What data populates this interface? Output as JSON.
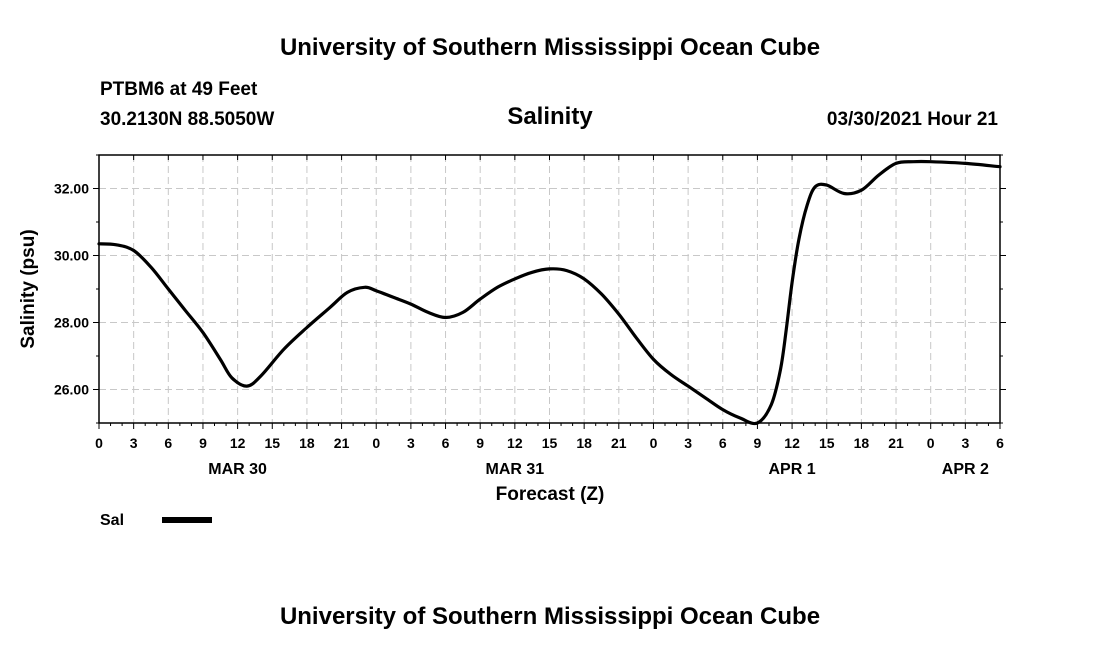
{
  "header": {
    "title": "University of Southern Mississippi Ocean Cube",
    "station": "PTBM6 at 49 Feet",
    "location": "30.2130N  88.5050W",
    "chart_title": "Salinity",
    "timestamp": "03/30/2021 Hour 21"
  },
  "footer": {
    "title": "University of Southern Mississippi Ocean Cube"
  },
  "colors": {
    "line": "#000000",
    "grid": "#c8c8c8"
  },
  "chart_data": {
    "type": "line",
    "title": "Salinity",
    "xlabel": "Forecast (Z)",
    "ylabel": "Salinity (psu)",
    "xlim": [
      0,
      78
    ],
    "ylim": [
      25.0,
      33.0
    ],
    "x_unit": "hours since 00Z Mar 30",
    "x_tick_values": [
      0,
      3,
      6,
      9,
      12,
      15,
      18,
      21,
      24,
      27,
      30,
      33,
      36,
      39,
      42,
      45,
      48,
      51,
      54,
      57,
      60,
      63,
      66,
      69,
      72,
      75,
      78
    ],
    "x_tick_labels": [
      "0",
      "3",
      "6",
      "9",
      "12",
      "15",
      "18",
      "21",
      "0",
      "3",
      "6",
      "9",
      "12",
      "15",
      "18",
      "21",
      "0",
      "3",
      "6",
      "9",
      "12",
      "15",
      "18",
      "21",
      "0",
      "3",
      "6"
    ],
    "date_labels": [
      {
        "x": 12,
        "label": "MAR 30"
      },
      {
        "x": 36,
        "label": "MAR 31"
      },
      {
        "x": 60,
        "label": "APR 1"
      },
      {
        "x": 75,
        "label": "APR 2"
      }
    ],
    "y_tick_values": [
      26,
      28,
      30,
      32
    ],
    "y_tick_labels": [
      "26.00",
      "28.00",
      "30.00",
      "32.00"
    ],
    "y_minor_step": 1,
    "grid": true,
    "legend": {
      "position": "bottom-left",
      "entries": [
        {
          "name": "Sal"
        }
      ]
    },
    "series": [
      {
        "name": "Sal",
        "x": [
          0,
          1.5,
          3,
          4.5,
          6,
          7.5,
          9,
          10.5,
          11.5,
          12.8,
          14,
          16,
          18,
          20,
          21.5,
          23,
          24,
          25.5,
          27,
          28.5,
          30,
          31.5,
          33,
          34.5,
          36,
          37.5,
          39,
          40.5,
          42,
          43.5,
          45,
          46.5,
          48,
          49.5,
          51,
          52.5,
          54,
          55.5,
          57,
          58.2,
          59,
          59.5,
          60,
          60.6,
          61.3,
          62,
          63,
          64.5,
          66,
          67.5,
          69,
          70.5,
          72,
          75,
          78
        ],
        "values": [
          30.35,
          30.32,
          30.15,
          29.65,
          29.0,
          28.35,
          27.7,
          26.9,
          26.35,
          26.1,
          26.4,
          27.2,
          27.85,
          28.45,
          28.9,
          29.05,
          28.95,
          28.75,
          28.55,
          28.3,
          28.15,
          28.3,
          28.7,
          29.05,
          29.3,
          29.5,
          29.6,
          29.55,
          29.3,
          28.85,
          28.25,
          27.55,
          26.9,
          26.45,
          26.1,
          25.75,
          25.4,
          25.15,
          25.0,
          25.55,
          26.6,
          27.8,
          29.2,
          30.5,
          31.5,
          32.05,
          32.1,
          31.85,
          31.95,
          32.4,
          32.75,
          32.8,
          32.8,
          32.75,
          32.65
        ]
      }
    ]
  }
}
